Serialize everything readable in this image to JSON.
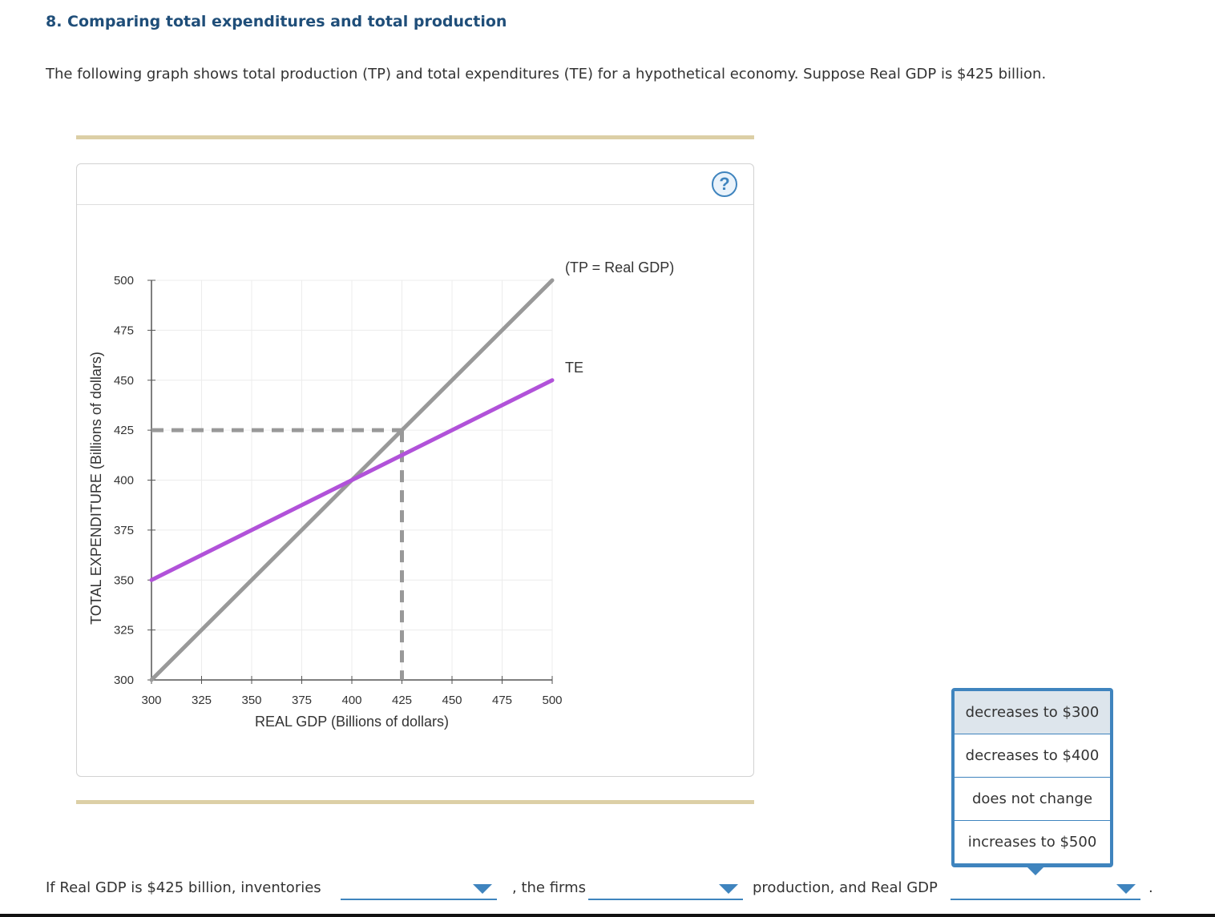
{
  "question": {
    "title": "8. Comparing total expenditures and total production",
    "intro": "The following graph shows total production (TP) and total expenditures (TE) for a hypothetical economy. Suppose Real GDP is $425 billion."
  },
  "colors": {
    "accent": "#3f84be",
    "te_line": "#b152d9",
    "tp_line": "#999999",
    "rule": "#dccfa6"
  },
  "help_label": "?",
  "chart_data": {
    "type": "line",
    "xlabel": "REAL GDP (Billions of dollars)",
    "ylabel": "TOTAL EXPENDITURE (Billions of dollars)",
    "xlim": [
      300,
      500
    ],
    "ylim": [
      300,
      500
    ],
    "x_ticks": [
      300,
      325,
      350,
      375,
      400,
      425,
      450,
      475,
      500
    ],
    "y_ticks": [
      300,
      325,
      350,
      375,
      400,
      425,
      450,
      475,
      500
    ],
    "grid": true,
    "series": [
      {
        "name": "(TP = Real GDP)",
        "color": "#999999",
        "points": [
          [
            300,
            300
          ],
          [
            500,
            500
          ]
        ]
      },
      {
        "name": "TE",
        "color": "#b152d9",
        "points": [
          [
            300,
            350
          ],
          [
            500,
            450
          ]
        ]
      }
    ],
    "reference_point": {
      "x": 425,
      "y": 425
    }
  },
  "footer": {
    "part1": "If Real GDP is $425 billion, inventories",
    "part2": ", the firms",
    "part3": "production, and Real GDP",
    "part4": "."
  },
  "dropdown_options": [
    "decreases to $300",
    "decreases to $400",
    "does not change",
    "increases to $500"
  ]
}
